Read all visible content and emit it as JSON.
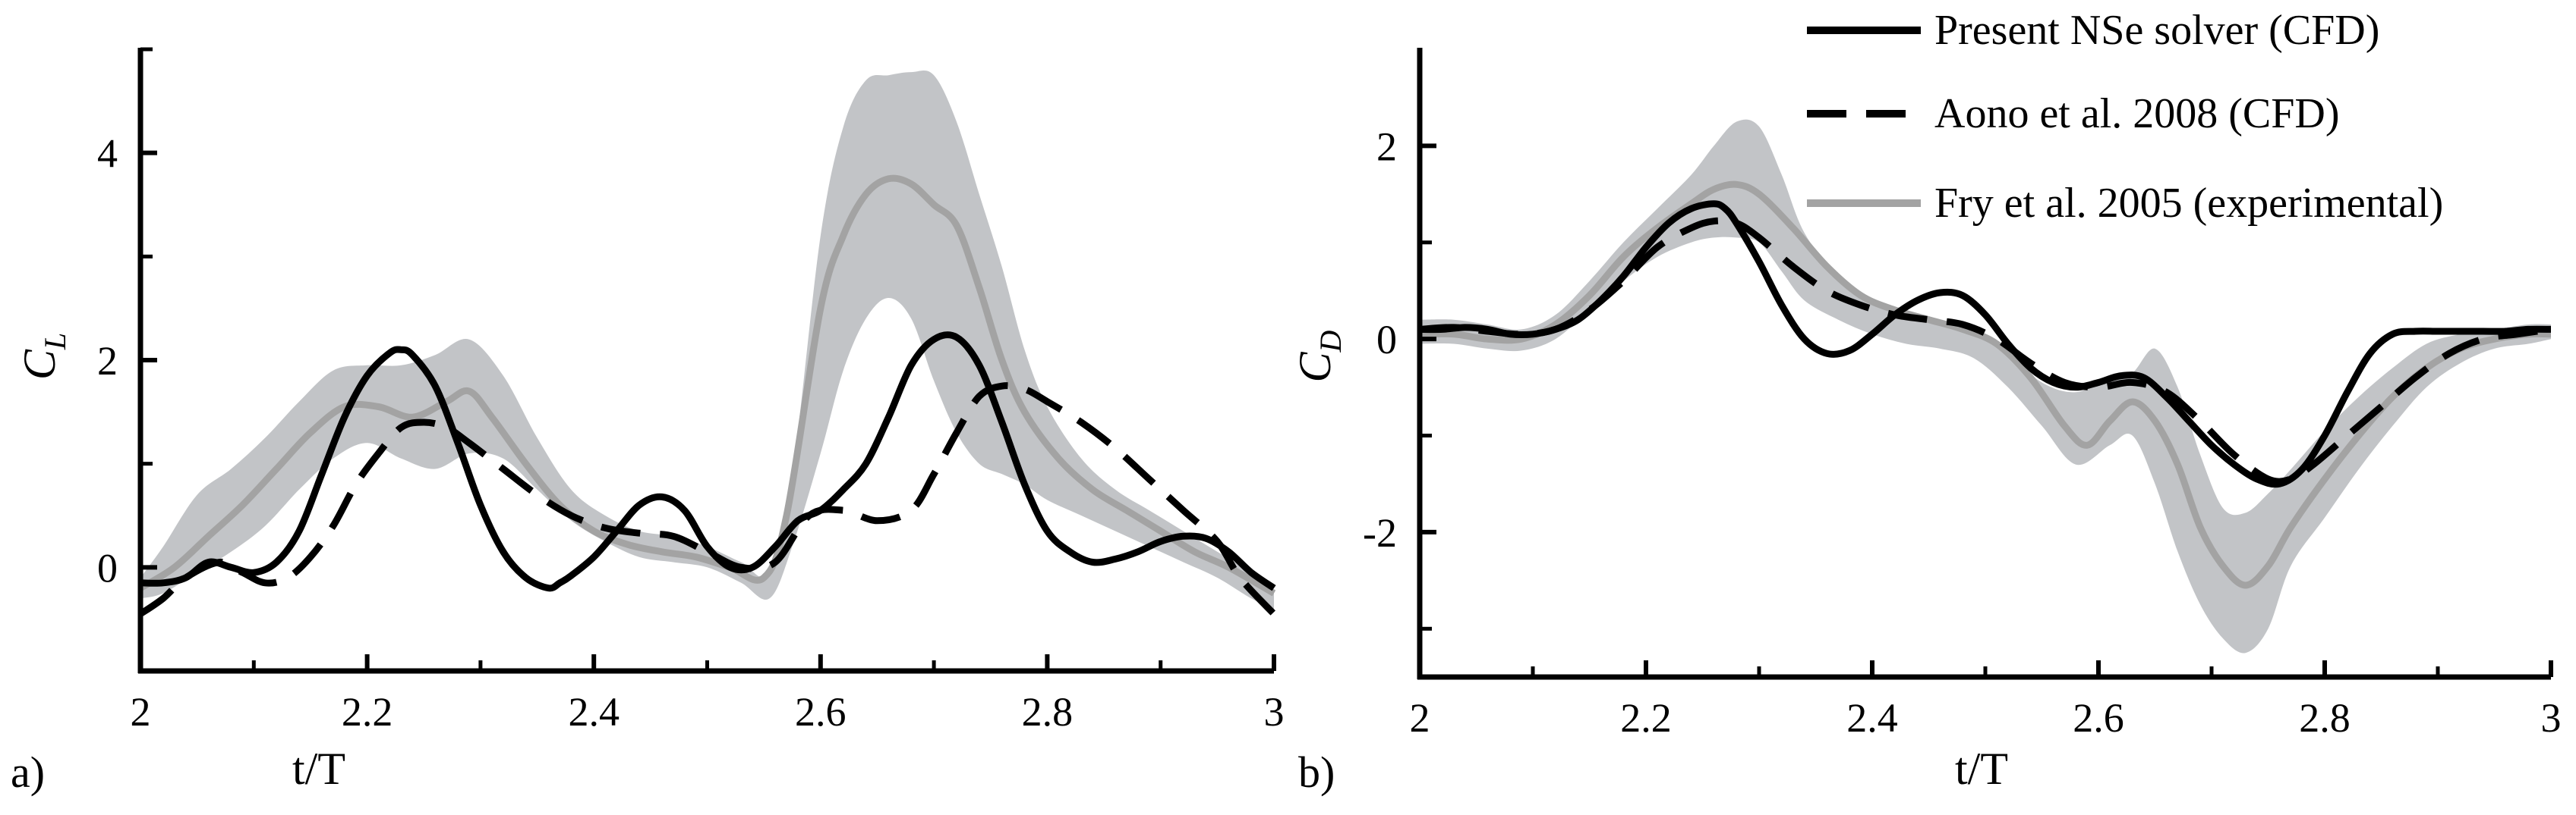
{
  "chart_data": [
    {
      "type": "line",
      "panel_label": "a)",
      "xlabel": "t/T",
      "ylabel_main": "C",
      "ylabel_sub": "L",
      "xlim": [
        2,
        3
      ],
      "ylim": [
        -1,
        5
      ],
      "xticks": [
        2,
        2.2,
        2.4,
        2.6,
        2.8,
        3
      ],
      "xtick_labels": [
        "2",
        "2.2",
        "2.4",
        "2.6",
        "2.8",
        "3"
      ],
      "yticks": [
        0,
        2,
        4
      ],
      "ytick_labels": [
        "0",
        "2",
        "4"
      ],
      "minor_yticks": [
        -1,
        1,
        3,
        5
      ],
      "band": {
        "name": "Fry et al. 2005 experimental range",
        "x": [
          2.0,
          2.02,
          2.05,
          2.08,
          2.11,
          2.14,
          2.17,
          2.2,
          2.23,
          2.26,
          2.29,
          2.32,
          2.35,
          2.38,
          2.41,
          2.44,
          2.47,
          2.5,
          2.53,
          2.555,
          2.575,
          2.6,
          2.62,
          2.64,
          2.66,
          2.68,
          2.7,
          2.72,
          2.74,
          2.76,
          2.78,
          2.8,
          2.83,
          2.86,
          2.89,
          2.92,
          2.95,
          2.98,
          3.0
        ],
        "upper": [
          -0.1,
          0.2,
          0.7,
          0.95,
          1.25,
          1.6,
          1.9,
          1.95,
          1.95,
          2.05,
          2.2,
          1.85,
          1.25,
          0.75,
          0.5,
          0.35,
          0.3,
          0.2,
          0.05,
          -0.05,
          0.9,
          3.2,
          4.25,
          4.7,
          4.75,
          4.78,
          4.75,
          4.3,
          3.6,
          2.9,
          2.1,
          1.55,
          1.05,
          0.75,
          0.55,
          0.35,
          0.15,
          -0.05,
          -0.25
        ],
        "lower": [
          -0.3,
          -0.25,
          -0.05,
          0.15,
          0.4,
          0.75,
          1.05,
          1.2,
          1.05,
          0.95,
          1.1,
          1.05,
          0.75,
          0.45,
          0.25,
          0.1,
          0.05,
          0.0,
          -0.15,
          -0.3,
          0.2,
          1.1,
          1.9,
          2.4,
          2.6,
          2.4,
          1.8,
          1.3,
          1.0,
          0.9,
          0.8,
          0.65,
          0.5,
          0.35,
          0.2,
          0.05,
          -0.1,
          -0.3,
          -0.4
        ]
      },
      "series": [
        {
          "name": "Fry et al. 2005 (experimental)",
          "style": "gray",
          "x": [
            2.0,
            2.03,
            2.06,
            2.09,
            2.12,
            2.15,
            2.18,
            2.21,
            2.24,
            2.27,
            2.29,
            2.31,
            2.34,
            2.37,
            2.4,
            2.43,
            2.46,
            2.49,
            2.52,
            2.55,
            2.57,
            2.6,
            2.62,
            2.64,
            2.66,
            2.68,
            2.7,
            2.72,
            2.74,
            2.76,
            2.78,
            2.81,
            2.84,
            2.87,
            2.9,
            2.93,
            2.96,
            3.0
          ],
          "y": [
            -0.2,
            0.0,
            0.3,
            0.6,
            0.95,
            1.3,
            1.55,
            1.55,
            1.45,
            1.6,
            1.7,
            1.45,
            1.0,
            0.6,
            0.35,
            0.22,
            0.15,
            0.1,
            0.0,
            -0.1,
            0.5,
            2.5,
            3.2,
            3.6,
            3.75,
            3.7,
            3.5,
            3.3,
            2.7,
            2.0,
            1.5,
            1.05,
            0.75,
            0.55,
            0.35,
            0.15,
            0.0,
            -0.25
          ]
        },
        {
          "name": "Aono et al. 2008 (CFD)",
          "style": "dashed",
          "x": [
            2.0,
            2.02,
            2.04,
            2.07,
            2.09,
            2.11,
            2.13,
            2.15,
            2.17,
            2.19,
            2.21,
            2.23,
            2.25,
            2.27,
            2.29,
            2.32,
            2.35,
            2.38,
            2.41,
            2.44,
            2.47,
            2.5,
            2.53,
            2.56,
            2.59,
            2.62,
            2.65,
            2.68,
            2.7,
            2.72,
            2.74,
            2.76,
            2.78,
            2.8,
            2.83,
            2.86,
            2.89,
            2.92,
            2.95,
            2.97,
            3.0
          ],
          "y": [
            -0.45,
            -0.3,
            -0.1,
            0.05,
            -0.05,
            -0.15,
            -0.1,
            0.1,
            0.4,
            0.8,
            1.1,
            1.35,
            1.4,
            1.35,
            1.2,
            0.95,
            0.7,
            0.5,
            0.38,
            0.33,
            0.3,
            0.15,
            0.0,
            0.05,
            0.5,
            0.55,
            0.45,
            0.55,
            0.9,
            1.3,
            1.65,
            1.75,
            1.72,
            1.6,
            1.4,
            1.15,
            0.85,
            0.55,
            0.25,
            -0.1,
            -0.45
          ]
        },
        {
          "name": "Present NSe solver (CFD)",
          "style": "solid",
          "x": [
            2.0,
            2.02,
            2.04,
            2.06,
            2.08,
            2.1,
            2.12,
            2.14,
            2.16,
            2.18,
            2.2,
            2.22,
            2.23,
            2.24,
            2.26,
            2.28,
            2.3,
            2.32,
            2.34,
            2.36,
            2.37,
            2.38,
            2.4,
            2.42,
            2.44,
            2.46,
            2.48,
            2.5,
            2.52,
            2.54,
            2.56,
            2.58,
            2.6,
            2.62,
            2.64,
            2.66,
            2.68,
            2.7,
            2.72,
            2.74,
            2.76,
            2.78,
            2.8,
            2.82,
            2.84,
            2.86,
            2.88,
            2.9,
            2.92,
            2.94,
            2.96,
            2.98,
            3.0
          ],
          "y": [
            -0.15,
            -0.15,
            -0.1,
            0.05,
            0.0,
            -0.05,
            0.05,
            0.35,
            0.9,
            1.45,
            1.85,
            2.07,
            2.1,
            2.05,
            1.75,
            1.2,
            0.6,
            0.15,
            -0.1,
            -0.2,
            -0.15,
            -0.08,
            0.1,
            0.35,
            0.6,
            0.68,
            0.55,
            0.2,
            0.0,
            0.0,
            0.2,
            0.45,
            0.55,
            0.75,
            1.0,
            1.45,
            1.95,
            2.2,
            2.22,
            1.95,
            1.4,
            0.8,
            0.35,
            0.15,
            0.05,
            0.08,
            0.15,
            0.25,
            0.3,
            0.28,
            0.15,
            -0.05,
            -0.2
          ]
        }
      ]
    },
    {
      "type": "line",
      "panel_label": "b)",
      "xlabel": "t/T",
      "ylabel_main": "C",
      "ylabel_sub": "D",
      "xlim": [
        2,
        3
      ],
      "ylim": [
        -3.5,
        3
      ],
      "xticks": [
        2,
        2.2,
        2.4,
        2.6,
        2.8,
        3
      ],
      "xtick_labels": [
        "2",
        "2.2",
        "2.4",
        "2.6",
        "2.8",
        "3"
      ],
      "yticks": [
        -2,
        0,
        2
      ],
      "ytick_labels": [
        "-2",
        "0",
        "2"
      ],
      "minor_yticks": [
        -3,
        -1,
        1
      ],
      "band": {
        "name": "Fry et al. 2005 experimental range",
        "x": [
          2.0,
          2.03,
          2.06,
          2.09,
          2.12,
          2.15,
          2.18,
          2.21,
          2.24,
          2.26,
          2.28,
          2.3,
          2.32,
          2.34,
          2.37,
          2.4,
          2.43,
          2.46,
          2.49,
          2.52,
          2.55,
          2.58,
          2.61,
          2.63,
          2.65,
          2.67,
          2.69,
          2.71,
          2.73,
          2.75,
          2.77,
          2.8,
          2.83,
          2.86,
          2.89,
          2.92,
          2.95,
          2.98,
          3.0
        ],
        "upper": [
          0.2,
          0.2,
          0.15,
          0.1,
          0.25,
          0.6,
          1.0,
          1.35,
          1.7,
          2.0,
          2.25,
          2.2,
          1.7,
          1.1,
          0.65,
          0.4,
          0.3,
          0.2,
          0.1,
          -0.15,
          -0.45,
          -0.55,
          -0.4,
          -0.35,
          -0.1,
          -0.5,
          -1.2,
          -1.75,
          -1.8,
          -1.6,
          -1.35,
          -0.95,
          -0.6,
          -0.3,
          -0.05,
          0.05,
          0.1,
          0.15,
          0.15
        ],
        "lower": [
          -0.05,
          -0.05,
          -0.1,
          -0.12,
          0.0,
          0.3,
          0.6,
          0.85,
          1.0,
          1.05,
          1.05,
          1.0,
          0.7,
          0.4,
          0.2,
          0.05,
          -0.05,
          -0.1,
          -0.2,
          -0.5,
          -0.9,
          -1.3,
          -1.1,
          -1.0,
          -1.5,
          -2.2,
          -2.75,
          -3.1,
          -3.25,
          -3.0,
          -2.35,
          -1.85,
          -1.35,
          -0.9,
          -0.5,
          -0.25,
          -0.1,
          -0.05,
          0.0
        ]
      },
      "series": [
        {
          "name": "Fry et al. 2005 (experimental)",
          "style": "gray",
          "x": [
            2.0,
            2.03,
            2.06,
            2.09,
            2.12,
            2.15,
            2.18,
            2.21,
            2.24,
            2.26,
            2.28,
            2.3,
            2.33,
            2.36,
            2.39,
            2.42,
            2.45,
            2.48,
            2.51,
            2.54,
            2.57,
            2.59,
            2.61,
            2.63,
            2.65,
            2.67,
            2.69,
            2.71,
            2.73,
            2.75,
            2.77,
            2.8,
            2.83,
            2.86,
            2.89,
            2.92,
            2.95,
            2.98,
            3.0
          ],
          "y": [
            0.05,
            0.05,
            0.0,
            0.0,
            0.15,
            0.45,
            0.85,
            1.15,
            1.4,
            1.55,
            1.6,
            1.5,
            1.15,
            0.75,
            0.45,
            0.3,
            0.2,
            0.1,
            -0.05,
            -0.4,
            -0.9,
            -1.1,
            -0.85,
            -0.65,
            -0.85,
            -1.3,
            -1.95,
            -2.35,
            -2.55,
            -2.35,
            -1.95,
            -1.45,
            -1.0,
            -0.6,
            -0.3,
            -0.1,
            0.0,
            0.05,
            0.05
          ]
        },
        {
          "name": "Aono et al. 2008 (CFD)",
          "style": "dashed",
          "x": [
            2.0,
            2.03,
            2.06,
            2.09,
            2.12,
            2.15,
            2.18,
            2.21,
            2.24,
            2.26,
            2.28,
            2.3,
            2.33,
            2.36,
            2.39,
            2.42,
            2.45,
            2.48,
            2.51,
            2.54,
            2.57,
            2.6,
            2.63,
            2.66,
            2.69,
            2.72,
            2.75,
            2.77,
            2.79,
            2.82,
            2.85,
            2.88,
            2.91,
            2.94,
            2.97,
            3.0
          ],
          "y": [
            0.1,
            0.12,
            0.08,
            0.05,
            0.1,
            0.3,
            0.6,
            0.95,
            1.15,
            1.22,
            1.2,
            1.05,
            0.75,
            0.5,
            0.35,
            0.25,
            0.2,
            0.15,
            0.0,
            -0.25,
            -0.45,
            -0.5,
            -0.45,
            -0.55,
            -0.85,
            -1.2,
            -1.45,
            -1.45,
            -1.3,
            -1.0,
            -0.7,
            -0.4,
            -0.15,
            0.0,
            0.05,
            0.1
          ]
        },
        {
          "name": "Present NSe solver (CFD)",
          "style": "solid",
          "x": [
            2.0,
            2.02,
            2.04,
            2.06,
            2.08,
            2.1,
            2.12,
            2.14,
            2.16,
            2.18,
            2.2,
            2.22,
            2.24,
            2.26,
            2.27,
            2.28,
            2.3,
            2.32,
            2.34,
            2.36,
            2.38,
            2.4,
            2.42,
            2.44,
            2.46,
            2.48,
            2.5,
            2.52,
            2.54,
            2.56,
            2.58,
            2.6,
            2.62,
            2.64,
            2.66,
            2.68,
            2.7,
            2.72,
            2.74,
            2.76,
            2.78,
            2.8,
            2.82,
            2.84,
            2.86,
            2.88,
            2.9,
            2.92,
            2.94,
            2.96,
            2.98,
            3.0
          ],
          "y": [
            0.1,
            0.1,
            0.12,
            0.1,
            0.05,
            0.05,
            0.1,
            0.2,
            0.4,
            0.65,
            0.95,
            1.2,
            1.35,
            1.4,
            1.35,
            1.2,
            0.8,
            0.35,
            0.0,
            -0.15,
            -0.12,
            0.05,
            0.25,
            0.4,
            0.48,
            0.45,
            0.25,
            -0.05,
            -0.3,
            -0.45,
            -0.5,
            -0.45,
            -0.38,
            -0.4,
            -0.6,
            -0.85,
            -1.1,
            -1.3,
            -1.45,
            -1.5,
            -1.35,
            -1.0,
            -0.55,
            -0.15,
            0.05,
            0.08,
            0.08,
            0.08,
            0.08,
            0.08,
            0.1,
            0.1
          ]
        }
      ]
    }
  ],
  "legend": {
    "placement": "top-right",
    "entries": [
      {
        "label": "Present NSe solver (CFD)",
        "style": "solid"
      },
      {
        "label": "Aono et al. 2008 (CFD)",
        "style": "dashed"
      },
      {
        "label": "Fry et al. 2005 (experimental)",
        "style": "gray"
      }
    ]
  },
  "colors": {
    "line": "#000000",
    "exp_line": "#a3a3a3",
    "exp_band": "#c2c4c7"
  }
}
